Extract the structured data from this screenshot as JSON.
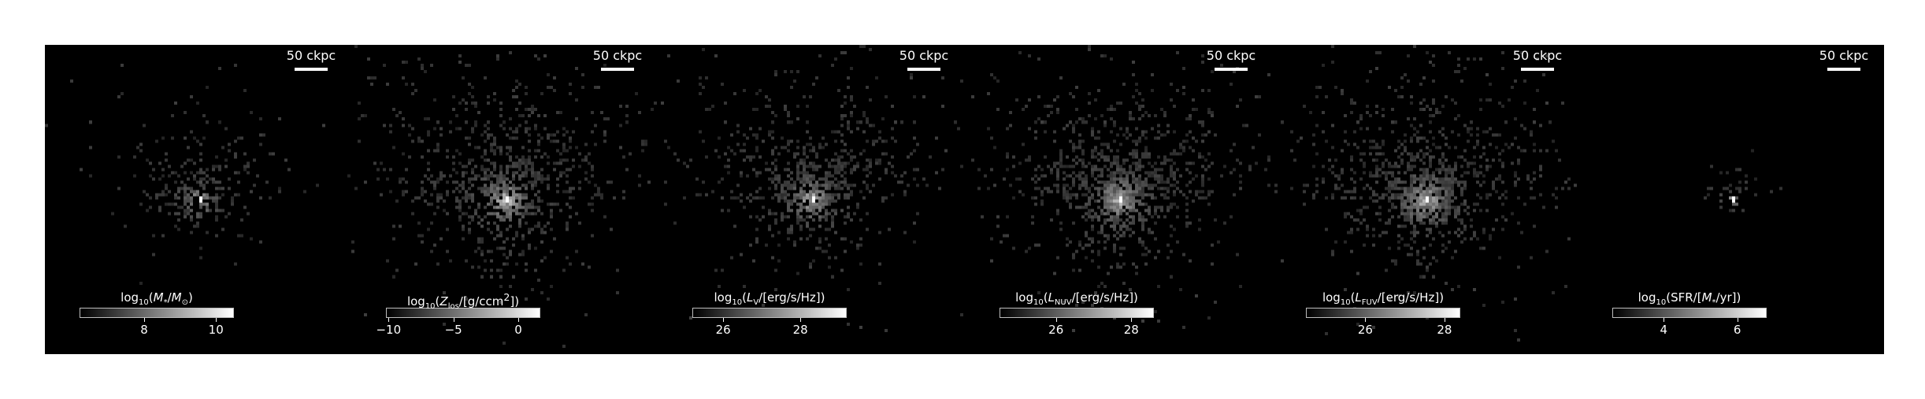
{
  "scale_bar_label": "50 ckpc",
  "panels": [
    {
      "id": "mass",
      "cbar_title_html": "log<sub>10</sub>(<i>M</i><sub>*</sub>/<i>M</i><sub>⊙</sub>)",
      "ticks": [
        {
          "v": 8,
          "label": "8"
        },
        {
          "v": 10,
          "label": "10"
        }
      ],
      "range": [
        6.2,
        10.5
      ],
      "spread": 22,
      "peak": 1.0,
      "density": 0.55
    },
    {
      "id": "metal",
      "cbar_title_html": "log<sub>10</sub>(<i>Z</i><sub>los</sub>/[g/ccm<sup>2</sup>])",
      "ticks": [
        {
          "v": -10,
          "label": "−10"
        },
        {
          "v": -5,
          "label": "−5"
        },
        {
          "v": 0,
          "label": "0"
        }
      ],
      "range": [
        -10.2,
        1.7
      ],
      "spread": 36,
      "peak": 1.0,
      "density": 0.75
    },
    {
      "id": "lv",
      "cbar_title_html": "log<sub>10</sub>(<i>L</i><sub>V</sub>/[erg/s/Hz])",
      "ticks": [
        {
          "v": 26,
          "label": "26"
        },
        {
          "v": 28,
          "label": "28"
        }
      ],
      "range": [
        25.2,
        29.2
      ],
      "spread": 32,
      "peak": 1.0,
      "density": 0.75
    },
    {
      "id": "nuv",
      "cbar_title_html": "log<sub>10</sub>(<i>L</i><sub>NUV</sub>/[erg/s/Hz])",
      "ticks": [
        {
          "v": 26,
          "label": "26"
        },
        {
          "v": 28,
          "label": "28"
        }
      ],
      "range": [
        24.5,
        28.6
      ],
      "spread": 36,
      "peak": 1.0,
      "density": 0.85
    },
    {
      "id": "fuv",
      "cbar_title_html": "log<sub>10</sub>(<i>L</i><sub>FUV</sub>/[erg/s/Hz])",
      "ticks": [
        {
          "v": 26,
          "label": "26"
        },
        {
          "v": 28,
          "label": "28"
        }
      ],
      "range": [
        24.5,
        28.4
      ],
      "spread": 36,
      "peak": 1.0,
      "density": 0.85
    },
    {
      "id": "sfr",
      "cbar_title_html": "log<sub>10</sub>(SFR/[<i>M</i><sub>*</sub>/yr])",
      "ticks": [
        {
          "v": 4,
          "label": "4"
        },
        {
          "v": 6,
          "label": "6"
        }
      ],
      "range": [
        2.6,
        6.8
      ],
      "spread": 11,
      "peak": 1.0,
      "density": 0.35
    }
  ]
}
